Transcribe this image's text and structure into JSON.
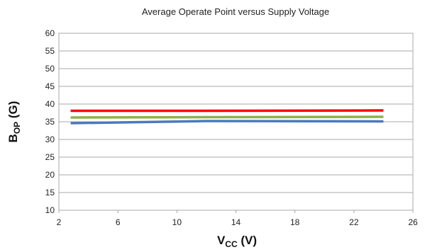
{
  "chart_data": {
    "type": "line",
    "title": "Average Operate Point versus Supply Voltage",
    "xlabel": {
      "main": "V",
      "sub": "CC",
      "suffix": " (V)"
    },
    "ylabel": {
      "main": "B",
      "sub": "OP",
      "suffix": " (G)"
    },
    "xlim": [
      2,
      26
    ],
    "ylim": [
      10,
      60
    ],
    "x_ticks": [
      2,
      6,
      10,
      14,
      18,
      22,
      26
    ],
    "y_ticks": [
      10,
      15,
      20,
      25,
      30,
      35,
      40,
      45,
      50,
      55,
      60
    ],
    "grid": "horizontal",
    "series": [
      {
        "color": "#ff0000",
        "x": [
          2.8,
          12,
          24
        ],
        "y": [
          38.1,
          38.1,
          38.2
        ]
      },
      {
        "color": "#8fb04a",
        "x": [
          2.8,
          12,
          24
        ],
        "y": [
          36.2,
          36.3,
          36.4
        ]
      },
      {
        "color": "#4a79c1",
        "x": [
          2.8,
          12,
          24
        ],
        "y": [
          34.6,
          35.2,
          35.1
        ]
      }
    ]
  }
}
